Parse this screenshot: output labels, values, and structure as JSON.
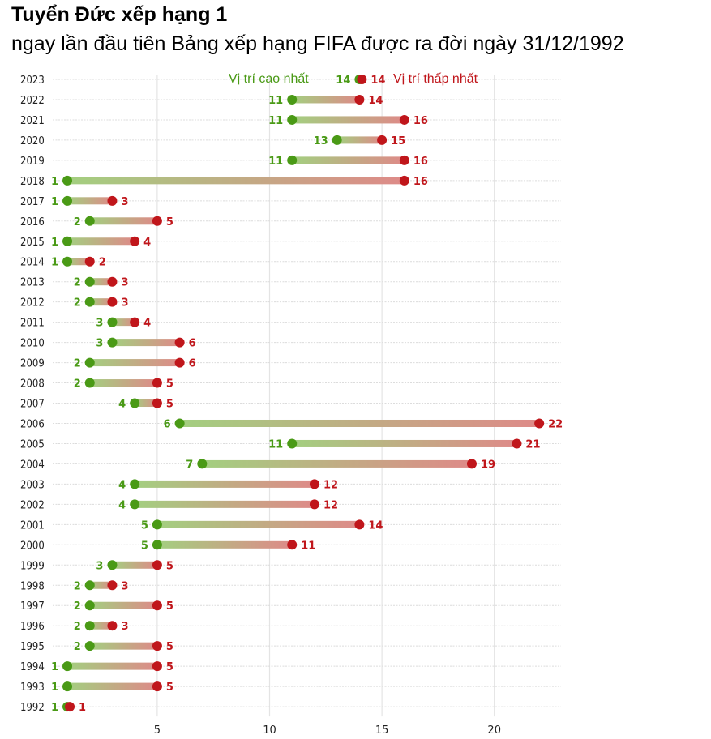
{
  "header": {
    "title": "Tuyển Đức xếp hạng 1",
    "subtitle": "ngay lần đầu tiên Bảng xếp hạng FIFA được ra đời ngày 31/12/1992"
  },
  "colors": {
    "highest": "#4a9a16",
    "lowest": "#c0161b",
    "bar_start": "#a3cf80",
    "bar_end": "#de8a88",
    "grid": "#e4e4e4"
  },
  "chart_data": {
    "type": "dumbbell",
    "title": "Tuyển Đức xếp hạng 1",
    "subtitle": "ngay lần đầu tiên Bảng xếp hạng FIFA được ra đời ngày 31/12/1992",
    "xlabel": "",
    "ylabel": "",
    "xlim": [
      0,
      23
    ],
    "xticks": [
      5,
      10,
      15,
      20
    ],
    "xtick_labels": [
      "5",
      "10",
      "15",
      "20"
    ],
    "grid": true,
    "legend": [
      {
        "name": "Vị trí cao nhất",
        "color": "#4a9a16"
      },
      {
        "name": "Vị trí thấp nhất",
        "color": "#c0161b"
      }
    ],
    "legend_placement": "top",
    "categories": [
      "2023",
      "2022",
      "2021",
      "2020",
      "2019",
      "2018",
      "2017",
      "2016",
      "2015",
      "2014",
      "2013",
      "2012",
      "2011",
      "2010",
      "2009",
      "2008",
      "2007",
      "2006",
      "2005",
      "2004",
      "2003",
      "2002",
      "2001",
      "2000",
      "1999",
      "1998",
      "1997",
      "1996",
      "1995",
      "1994",
      "1993",
      "1992"
    ],
    "series": [
      {
        "name": "Vị trí cao nhất",
        "values": [
          14,
          11,
          11,
          13,
          11,
          1,
          1,
          2,
          1,
          1,
          2,
          2,
          3,
          3,
          2,
          2,
          4,
          6,
          11,
          7,
          4,
          4,
          5,
          5,
          3,
          2,
          2,
          2,
          2,
          1,
          1,
          1
        ]
      },
      {
        "name": "Vị trí thấp nhất",
        "values": [
          14,
          14,
          16,
          15,
          16,
          16,
          3,
          5,
          4,
          2,
          3,
          3,
          4,
          6,
          6,
          5,
          5,
          22,
          21,
          19,
          12,
          12,
          14,
          11,
          5,
          3,
          5,
          3,
          5,
          5,
          5,
          1
        ]
      }
    ]
  }
}
